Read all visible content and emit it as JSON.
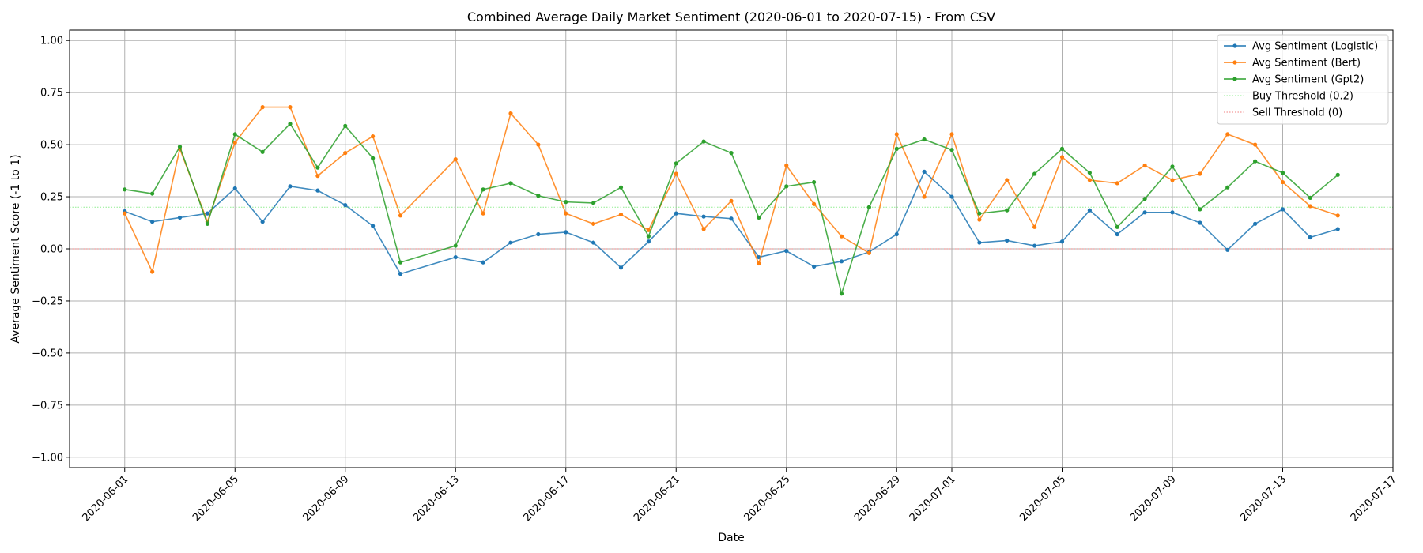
{
  "chart_data": {
    "type": "line",
    "title": "Combined Average Daily Market Sentiment (2020-06-01 to 2020-07-15) - From CSV",
    "xlabel": "Date",
    "ylabel": "Average Sentiment Score (-1 to 1)",
    "ylim": [
      -1.05,
      1.05
    ],
    "xlim": [
      "2020-05-30",
      "2020-07-17"
    ],
    "y_ticks": [
      -1.0,
      -0.75,
      -0.5,
      -0.25,
      0.0,
      0.25,
      0.5,
      0.75,
      1.0
    ],
    "y_tick_labels": [
      "−1.00",
      "−0.75",
      "−0.50",
      "−0.25",
      "0.00",
      "0.25",
      "0.50",
      "0.75",
      "1.00"
    ],
    "x_ticks": [
      "2020-06-01",
      "2020-06-05",
      "2020-06-09",
      "2020-06-13",
      "2020-06-17",
      "2020-06-21",
      "2020-06-25",
      "2020-06-29",
      "2020-07-01",
      "2020-07-05",
      "2020-07-09",
      "2020-07-13",
      "2020-07-17"
    ],
    "grid": true,
    "legend_position": "top-right",
    "series": [
      {
        "name": "Avg Sentiment (Logistic)",
        "color": "#1f77b4",
        "style": "solid",
        "points": [
          [
            "2020-06-01",
            0.18
          ],
          [
            "2020-06-02",
            0.13
          ],
          [
            "2020-06-03",
            0.15
          ],
          [
            "2020-06-04",
            0.17
          ],
          [
            "2020-06-05",
            0.29
          ],
          [
            "2020-06-06",
            0.13
          ],
          [
            "2020-06-07",
            0.3
          ],
          [
            "2020-06-08",
            0.28
          ],
          [
            "2020-06-09",
            0.21
          ],
          [
            "2020-06-10",
            0.11
          ],
          [
            "2020-06-11",
            -0.12
          ],
          [
            "2020-06-13",
            -0.04
          ],
          [
            "2020-06-14",
            -0.065
          ],
          [
            "2020-06-15",
            0.03
          ],
          [
            "2020-06-16",
            0.07
          ],
          [
            "2020-06-17",
            0.08
          ],
          [
            "2020-06-18",
            0.03
          ],
          [
            "2020-06-19",
            -0.09
          ],
          [
            "2020-06-20",
            0.035
          ],
          [
            "2020-06-21",
            0.17
          ],
          [
            "2020-06-22",
            0.155
          ],
          [
            "2020-06-23",
            0.145
          ],
          [
            "2020-06-24",
            -0.04
          ],
          [
            "2020-06-25",
            -0.01
          ],
          [
            "2020-06-26",
            -0.085
          ],
          [
            "2020-06-27",
            -0.06
          ],
          [
            "2020-06-28",
            -0.015
          ],
          [
            "2020-06-29",
            0.07
          ],
          [
            "2020-06-30",
            0.37
          ],
          [
            "2020-07-01",
            0.25
          ],
          [
            "2020-07-02",
            0.03
          ],
          [
            "2020-07-03",
            0.04
          ],
          [
            "2020-07-04",
            0.015
          ],
          [
            "2020-07-05",
            0.035
          ],
          [
            "2020-07-06",
            0.185
          ],
          [
            "2020-07-07",
            0.07
          ],
          [
            "2020-07-08",
            0.175
          ],
          [
            "2020-07-09",
            0.175
          ],
          [
            "2020-07-10",
            0.125
          ],
          [
            "2020-07-11",
            -0.005
          ],
          [
            "2020-07-12",
            0.12
          ],
          [
            "2020-07-13",
            0.19
          ],
          [
            "2020-07-14",
            0.055
          ],
          [
            "2020-07-15",
            0.095
          ]
        ]
      },
      {
        "name": "Avg Sentiment (Bert)",
        "color": "#ff7f0e",
        "style": "solid",
        "points": [
          [
            "2020-06-01",
            0.17
          ],
          [
            "2020-06-02",
            -0.11
          ],
          [
            "2020-06-03",
            0.48
          ],
          [
            "2020-06-04",
            0.13
          ],
          [
            "2020-06-05",
            0.51
          ],
          [
            "2020-06-06",
            0.68
          ],
          [
            "2020-06-07",
            0.68
          ],
          [
            "2020-06-08",
            0.35
          ],
          [
            "2020-06-09",
            0.46
          ],
          [
            "2020-06-10",
            0.54
          ],
          [
            "2020-06-11",
            0.16
          ],
          [
            "2020-06-13",
            0.43
          ],
          [
            "2020-06-14",
            0.17
          ],
          [
            "2020-06-15",
            0.65
          ],
          [
            "2020-06-16",
            0.5
          ],
          [
            "2020-06-17",
            0.17
          ],
          [
            "2020-06-18",
            0.12
          ],
          [
            "2020-06-19",
            0.165
          ],
          [
            "2020-06-20",
            0.09
          ],
          [
            "2020-06-21",
            0.36
          ],
          [
            "2020-06-22",
            0.095
          ],
          [
            "2020-06-23",
            0.23
          ],
          [
            "2020-06-24",
            -0.07
          ],
          [
            "2020-06-25",
            0.4
          ],
          [
            "2020-06-26",
            0.215
          ],
          [
            "2020-06-27",
            0.06
          ],
          [
            "2020-06-28",
            -0.02
          ],
          [
            "2020-06-29",
            0.55
          ],
          [
            "2020-06-30",
            0.25
          ],
          [
            "2020-07-01",
            0.55
          ],
          [
            "2020-07-02",
            0.14
          ],
          [
            "2020-07-03",
            0.33
          ],
          [
            "2020-07-04",
            0.105
          ],
          [
            "2020-07-05",
            0.44
          ],
          [
            "2020-07-06",
            0.33
          ],
          [
            "2020-07-07",
            0.315
          ],
          [
            "2020-07-08",
            0.4
          ],
          [
            "2020-07-09",
            0.33
          ],
          [
            "2020-07-10",
            0.36
          ],
          [
            "2020-07-11",
            0.55
          ],
          [
            "2020-07-12",
            0.5
          ],
          [
            "2020-07-13",
            0.32
          ],
          [
            "2020-07-14",
            0.205
          ],
          [
            "2020-07-15",
            0.16
          ]
        ]
      },
      {
        "name": "Avg Sentiment (Gpt2)",
        "color": "#2ca02c",
        "style": "solid",
        "points": [
          [
            "2020-06-01",
            0.285
          ],
          [
            "2020-06-02",
            0.265
          ],
          [
            "2020-06-03",
            0.49
          ],
          [
            "2020-06-04",
            0.12
          ],
          [
            "2020-06-05",
            0.55
          ],
          [
            "2020-06-06",
            0.465
          ],
          [
            "2020-06-07",
            0.6
          ],
          [
            "2020-06-08",
            0.39
          ],
          [
            "2020-06-09",
            0.59
          ],
          [
            "2020-06-10",
            0.435
          ],
          [
            "2020-06-11",
            -0.065
          ],
          [
            "2020-06-13",
            0.015
          ],
          [
            "2020-06-14",
            0.285
          ],
          [
            "2020-06-15",
            0.315
          ],
          [
            "2020-06-16",
            0.255
          ],
          [
            "2020-06-17",
            0.225
          ],
          [
            "2020-06-18",
            0.22
          ],
          [
            "2020-06-19",
            0.295
          ],
          [
            "2020-06-20",
            0.06
          ],
          [
            "2020-06-21",
            0.41
          ],
          [
            "2020-06-22",
            0.515
          ],
          [
            "2020-06-23",
            0.46
          ],
          [
            "2020-06-24",
            0.15
          ],
          [
            "2020-06-25",
            0.3
          ],
          [
            "2020-06-26",
            0.32
          ],
          [
            "2020-06-27",
            -0.215
          ],
          [
            "2020-06-28",
            0.2
          ],
          [
            "2020-06-29",
            0.48
          ],
          [
            "2020-06-30",
            0.525
          ],
          [
            "2020-07-01",
            0.475
          ],
          [
            "2020-07-02",
            0.17
          ],
          [
            "2020-07-03",
            0.185
          ],
          [
            "2020-07-04",
            0.36
          ],
          [
            "2020-07-05",
            0.48
          ],
          [
            "2020-07-06",
            0.365
          ],
          [
            "2020-07-07",
            0.105
          ],
          [
            "2020-07-08",
            0.24
          ],
          [
            "2020-07-09",
            0.395
          ],
          [
            "2020-07-10",
            0.19
          ],
          [
            "2020-07-11",
            0.295
          ],
          [
            "2020-07-12",
            0.42
          ],
          [
            "2020-07-13",
            0.365
          ],
          [
            "2020-07-14",
            0.245
          ],
          [
            "2020-07-15",
            0.355
          ]
        ]
      }
    ],
    "thresholds": [
      {
        "name": "Buy Threshold (0.2)",
        "value": 0.2,
        "color": "#90ee90",
        "style": "dotted"
      },
      {
        "name": "Sell Threshold (0)",
        "value": 0.0,
        "color": "#f08080",
        "style": "dotted"
      }
    ]
  }
}
